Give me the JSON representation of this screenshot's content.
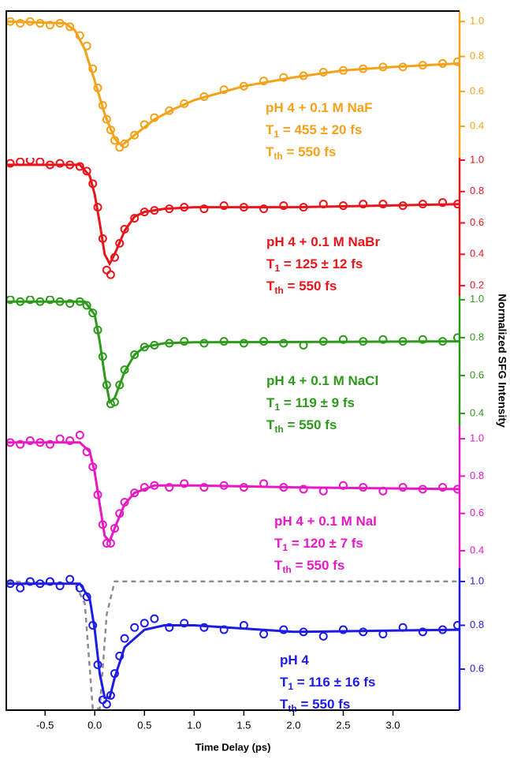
{
  "chart_data": [
    {
      "type": "scatter",
      "xlim": [
        -0.89,
        3.67
      ],
      "ylim": [
        0.22,
        1.06
      ],
      "color": "#F5A21B",
      "yticks": [
        {
          "value": 1.0,
          "label": "1.0"
        },
        0.8,
        0.6,
        0.4
      ],
      "annotation": [
        [
          "pH 4 + 0.1 M NaF"
        ],
        [
          "T",
          "1",
          " = 455 ± 20 fs"
        ],
        [
          "T",
          "th",
          " = 550 fs"
        ]
      ],
      "series": [
        {
          "style": "markers",
          "color": "#F5A21B",
          "x": [
            -0.85,
            -0.75,
            -0.65,
            -0.55,
            -0.45,
            -0.35,
            -0.25,
            -0.15,
            -0.08,
            -0.02,
            0.03,
            0.08,
            0.12,
            0.16,
            0.2,
            0.25,
            0.3,
            0.4,
            0.5,
            0.6,
            0.75,
            0.9,
            1.1,
            1.3,
            1.5,
            1.7,
            1.9,
            2.1,
            2.3,
            2.5,
            2.7,
            2.9,
            3.1,
            3.3,
            3.5,
            3.65
          ],
          "values": [
            1.0,
            0.99,
            1.0,
            0.99,
            0.98,
            0.99,
            0.97,
            0.92,
            0.86,
            0.73,
            0.62,
            0.52,
            0.44,
            0.38,
            0.32,
            0.28,
            0.3,
            0.35,
            0.41,
            0.45,
            0.49,
            0.53,
            0.57,
            0.61,
            0.63,
            0.66,
            0.68,
            0.69,
            0.71,
            0.72,
            0.73,
            0.74,
            0.74,
            0.75,
            0.76,
            0.77
          ]
        },
        {
          "style": "line",
          "color": "#F5A21B",
          "x": [
            -0.88,
            -0.3,
            -0.2,
            -0.1,
            0,
            0.1,
            0.2,
            0.27,
            0.4,
            0.6,
            0.8,
            1.0,
            1.5,
            2.0,
            2.5,
            3.0,
            3.67
          ],
          "values": [
            1.0,
            0.99,
            0.95,
            0.84,
            0.66,
            0.47,
            0.33,
            0.29,
            0.35,
            0.44,
            0.5,
            0.55,
            0.63,
            0.68,
            0.72,
            0.74,
            0.76
          ]
        }
      ]
    },
    {
      "type": "scatter",
      "xlim": [
        -0.89,
        3.67
      ],
      "ylim": [
        0.135,
        1.015
      ],
      "color": "#E8161B",
      "yticks": [
        {
          "value": 1.0,
          "label": "1.0"
        },
        0.8,
        0.6,
        0.4,
        0.2
      ],
      "annotation": [
        [
          "pH 4 + 0.1 M NaBr"
        ],
        [
          "T",
          "1",
          " = 125 ± 12 fs"
        ],
        [
          "T",
          "th",
          " = 550 fs"
        ]
      ],
      "series": [
        {
          "style": "markers",
          "color": "#E8161B",
          "x": [
            -0.85,
            -0.75,
            -0.65,
            -0.55,
            -0.45,
            -0.35,
            -0.25,
            -0.15,
            -0.08,
            -0.02,
            0.03,
            0.08,
            0.12,
            0.16,
            0.2,
            0.25,
            0.3,
            0.4,
            0.5,
            0.6,
            0.75,
            0.9,
            1.1,
            1.3,
            1.5,
            1.7,
            1.9,
            2.1,
            2.3,
            2.5,
            2.7,
            2.9,
            3.1,
            3.3,
            3.5,
            3.65
          ],
          "values": [
            0.98,
            0.99,
            1.0,
            0.99,
            0.97,
            0.98,
            0.97,
            0.96,
            0.93,
            0.85,
            0.7,
            0.5,
            0.3,
            0.27,
            0.38,
            0.47,
            0.56,
            0.63,
            0.67,
            0.68,
            0.69,
            0.7,
            0.69,
            0.71,
            0.7,
            0.69,
            0.71,
            0.7,
            0.72,
            0.71,
            0.72,
            0.72,
            0.71,
            0.72,
            0.73,
            0.72
          ]
        },
        {
          "style": "line",
          "color": "#E8161B",
          "x": [
            -0.88,
            -0.15,
            -0.05,
            0.0,
            0.05,
            0.1,
            0.15,
            0.2,
            0.3,
            0.4,
            0.5,
            0.7,
            1.0,
            2.0,
            3.67
          ],
          "values": [
            0.97,
            0.97,
            0.9,
            0.78,
            0.6,
            0.4,
            0.34,
            0.4,
            0.55,
            0.64,
            0.67,
            0.69,
            0.7,
            0.7,
            0.72
          ]
        }
      ]
    },
    {
      "type": "scatter",
      "xlim": [
        -0.89,
        3.67
      ],
      "ylim": [
        0.333,
        1.02
      ],
      "color": "#2E9A1C",
      "yticks": [
        {
          "value": 1.0,
          "label": "1.0"
        },
        0.8,
        0.6,
        0.4
      ],
      "ylabel": "Normalized SFG Intensity",
      "annotation": [
        [
          "pH 4 + 0.1 M NaCl"
        ],
        [
          "T",
          "1",
          " = 119 ± 9 fs"
        ],
        [
          "T",
          "th",
          " = 550 fs"
        ]
      ],
      "series": [
        {
          "style": "markers",
          "color": "#2E9A1C",
          "x": [
            -0.85,
            -0.75,
            -0.65,
            -0.55,
            -0.45,
            -0.35,
            -0.25,
            -0.15,
            -0.08,
            -0.02,
            0.03,
            0.08,
            0.12,
            0.16,
            0.2,
            0.25,
            0.3,
            0.4,
            0.5,
            0.6,
            0.75,
            0.9,
            1.1,
            1.3,
            1.5,
            1.7,
            1.9,
            2.1,
            2.3,
            2.5,
            2.7,
            2.9,
            3.1,
            3.3,
            3.5,
            3.65
          ],
          "values": [
            1.0,
            0.99,
            1.0,
            0.99,
            1.0,
            0.99,
            0.98,
            0.99,
            0.97,
            0.93,
            0.84,
            0.7,
            0.55,
            0.45,
            0.46,
            0.55,
            0.63,
            0.71,
            0.75,
            0.76,
            0.77,
            0.78,
            0.77,
            0.78,
            0.77,
            0.78,
            0.77,
            0.76,
            0.78,
            0.79,
            0.78,
            0.79,
            0.78,
            0.79,
            0.78,
            0.8
          ]
        },
        {
          "style": "line",
          "color": "#2E9A1C",
          "x": [
            -0.88,
            -0.1,
            0.0,
            0.05,
            0.1,
            0.15,
            0.2,
            0.3,
            0.4,
            0.5,
            0.7,
            1.0,
            3.67
          ],
          "values": [
            0.99,
            0.99,
            0.92,
            0.78,
            0.6,
            0.46,
            0.48,
            0.62,
            0.71,
            0.75,
            0.77,
            0.775,
            0.78
          ]
        }
      ]
    },
    {
      "type": "scatter",
      "xlim": [
        -0.89,
        3.67
      ],
      "ylim": [
        0.307,
        1.068
      ],
      "color": "#E619C5",
      "yticks": [
        {
          "value": 1.0,
          "label": "1.0"
        },
        0.8,
        0.6,
        0.4
      ],
      "annotation": [
        [
          "pH 4 + 0.1 M NaI"
        ],
        [
          "T",
          "1",
          " = 120 ± 7 fs"
        ],
        [
          "T",
          "th",
          " = 550 fs"
        ]
      ],
      "series": [
        {
          "style": "markers",
          "color": "#E619C5",
          "x": [
            -0.85,
            -0.75,
            -0.65,
            -0.55,
            -0.45,
            -0.35,
            -0.25,
            -0.15,
            -0.08,
            -0.02,
            0.03,
            0.08,
            0.12,
            0.16,
            0.2,
            0.25,
            0.3,
            0.4,
            0.5,
            0.6,
            0.75,
            0.9,
            1.1,
            1.3,
            1.5,
            1.7,
            1.9,
            2.1,
            2.3,
            2.5,
            2.7,
            2.9,
            3.1,
            3.3,
            3.5,
            3.65
          ],
          "values": [
            0.98,
            0.97,
            0.99,
            0.98,
            0.97,
            1.0,
            0.99,
            1.02,
            0.93,
            0.85,
            0.7,
            0.54,
            0.44,
            0.44,
            0.52,
            0.6,
            0.66,
            0.71,
            0.74,
            0.75,
            0.74,
            0.76,
            0.74,
            0.75,
            0.74,
            0.76,
            0.74,
            0.73,
            0.72,
            0.75,
            0.74,
            0.72,
            0.74,
            0.73,
            0.74,
            0.73
          ]
        },
        {
          "style": "line",
          "color": "#E619C5",
          "x": [
            -0.88,
            -0.15,
            -0.05,
            0.0,
            0.05,
            0.1,
            0.15,
            0.2,
            0.3,
            0.4,
            0.6,
            1.0,
            2.0,
            3.67
          ],
          "values": [
            0.98,
            0.98,
            0.93,
            0.82,
            0.65,
            0.48,
            0.45,
            0.52,
            0.65,
            0.71,
            0.75,
            0.75,
            0.74,
            0.73
          ]
        }
      ]
    },
    {
      "type": "scatter",
      "xlim": [
        -0.89,
        3.67
      ],
      "ylim": [
        0.413,
        1.061
      ],
      "color": "#1C1CE6",
      "yticks": [
        {
          "value": 1.0,
          "label": "1.0"
        },
        0.8,
        0.6
      ],
      "xlabel": "Time Delay (ps)",
      "xticks": [
        -0.5,
        {
          "value": 0,
          "label": "0.0"
        },
        0.5,
        {
          "value": 1,
          "label": "1.0"
        },
        1.5,
        {
          "value": 2,
          "label": "2.0"
        },
        2.5,
        {
          "value": 3,
          "label": "3.0"
        }
      ],
      "annotation": [
        [
          "pH 4"
        ],
        [
          "T",
          "1",
          " = 116 ± 16 fs"
        ],
        [
          "T",
          "th",
          " = 550 fs"
        ]
      ],
      "series": [
        {
          "style": "dashed",
          "color": "#8C8C8C",
          "x": [
            -0.88,
            -0.2,
            -0.1,
            -0.02,
            0.05,
            0.12,
            0.2,
            3.67
          ],
          "values": [
            1.0,
            0.99,
            0.9,
            0.42,
            0.42,
            0.85,
            1.0,
            1.0
          ]
        },
        {
          "style": "markers",
          "color": "#1C1CE6",
          "x": [
            -0.85,
            -0.75,
            -0.65,
            -0.55,
            -0.45,
            -0.35,
            -0.25,
            -0.15,
            -0.08,
            -0.02,
            0.03,
            0.08,
            0.12,
            0.16,
            0.2,
            0.25,
            0.3,
            0.4,
            0.5,
            0.6,
            0.75,
            0.9,
            1.1,
            1.3,
            1.5,
            1.7,
            1.9,
            2.1,
            2.3,
            2.5,
            2.7,
            2.9,
            3.1,
            3.3,
            3.5,
            3.65
          ],
          "values": [
            0.99,
            0.97,
            1.0,
            0.99,
            1.0,
            0.98,
            1.01,
            0.97,
            0.93,
            0.8,
            0.62,
            0.46,
            0.44,
            0.48,
            0.58,
            0.66,
            0.74,
            0.79,
            0.81,
            0.83,
            0.79,
            0.81,
            0.79,
            0.78,
            0.8,
            0.76,
            0.78,
            0.77,
            0.75,
            0.78,
            0.77,
            0.76,
            0.79,
            0.77,
            0.78,
            0.8
          ]
        },
        {
          "style": "line",
          "color": "#1C1CE6",
          "x": [
            -0.88,
            -0.15,
            -0.05,
            0.0,
            0.05,
            0.1,
            0.15,
            0.2,
            0.3,
            0.5,
            0.7,
            1.0,
            2.0,
            3.67
          ],
          "values": [
            0.99,
            0.99,
            0.92,
            0.78,
            0.58,
            0.47,
            0.47,
            0.56,
            0.7,
            0.78,
            0.8,
            0.8,
            0.77,
            0.78
          ]
        }
      ]
    }
  ]
}
